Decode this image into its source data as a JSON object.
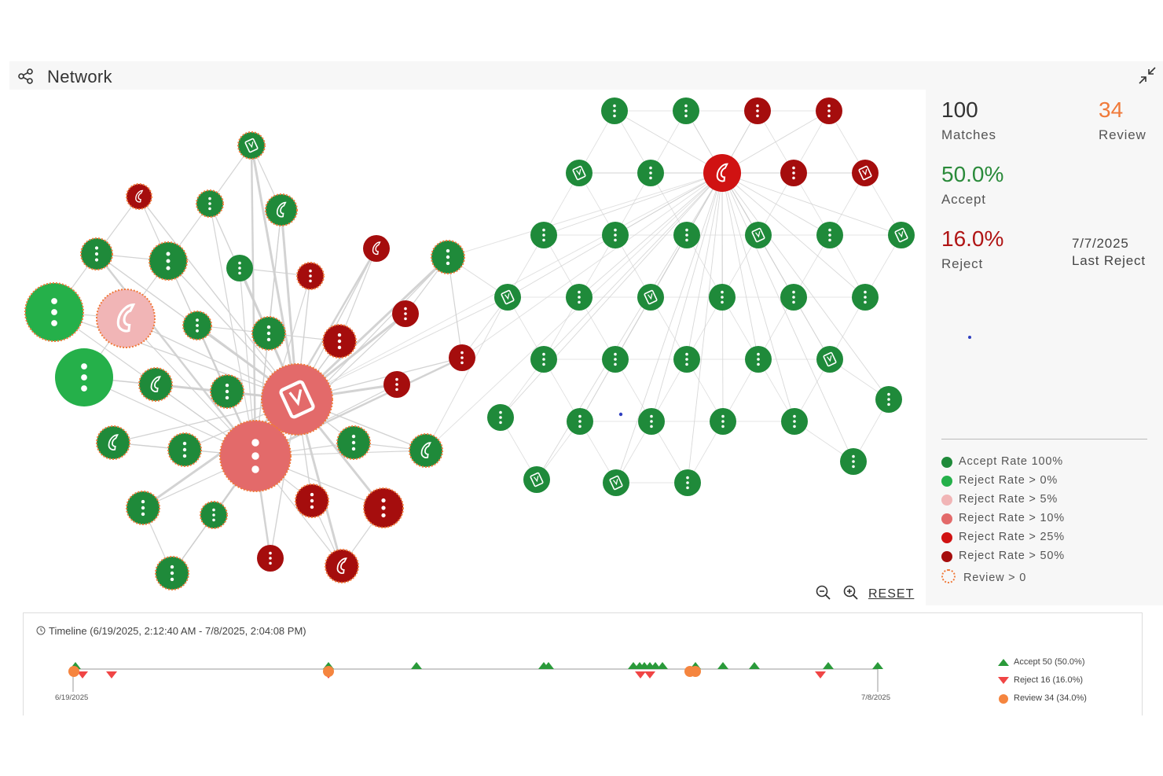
{
  "header": {
    "title": "Network",
    "share_icon": "share-icon",
    "collapse_icon": "collapse-icon"
  },
  "stats": {
    "matches": {
      "value": "100",
      "label": "Matches"
    },
    "review": {
      "value": "34",
      "label": "Review",
      "color": "#f07a3a"
    },
    "accept": {
      "value": "50.0%",
      "label": "Accept",
      "color": "#2a8a3a"
    },
    "reject": {
      "value": "16.0%",
      "label": "Reject",
      "color": "#b01515"
    },
    "last_reject": {
      "value": "7/7/2025",
      "label": "Last Reject"
    }
  },
  "legend": [
    {
      "label": "Accept Rate 100%",
      "color": "#1f8a3a"
    },
    {
      "label": "Reject Rate > 0%",
      "color": "#25b04a"
    },
    {
      "label": "Reject Rate > 5%",
      "color": "#f1b5b6"
    },
    {
      "label": "Reject Rate > 10%",
      "color": "#e36a6a"
    },
    {
      "label": "Reject Rate > 25%",
      "color": "#d01212"
    },
    {
      "label": "Reject Rate > 50%",
      "color": "#a50d0d"
    },
    {
      "label": "Review > 0",
      "color": "#f07a3a",
      "style": "dashed-ring"
    }
  ],
  "controls": {
    "zoom_out_icon": "zoom-out-icon",
    "zoom_in_icon": "zoom-in-icon",
    "reset_label": "RESET"
  },
  "timeline": {
    "title": "Timeline (6/19/2025, 2:12:40 AM - 7/8/2025, 2:04:08 PM)",
    "start_label": "6/19/2025",
    "end_label": "7/8/2025",
    "legend": [
      {
        "label": "Accept 50 (50.0%)",
        "color": "#2a9a3a",
        "marker": "triangle-up"
      },
      {
        "label": "Reject 16 (16.0%)",
        "color": "#f04545",
        "marker": "triangle-down"
      },
      {
        "label": "Review 34 (34.0%)",
        "color": "#f5853f",
        "marker": "circle"
      }
    ]
  }
}
